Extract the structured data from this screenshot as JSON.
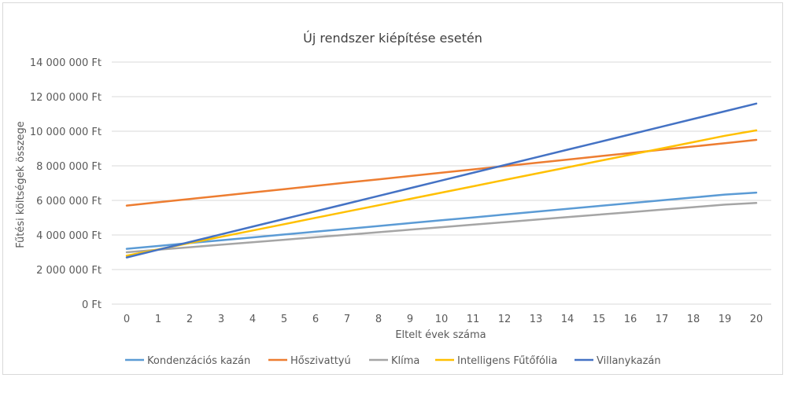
{
  "chart_data": {
    "type": "line",
    "title": "Új rendszer kiépítése esetén",
    "xlabel": "Eltelt évek száma",
    "ylabel": "Fűtési költségek összege",
    "x": [
      0,
      1,
      2,
      3,
      4,
      5,
      6,
      7,
      8,
      9,
      10,
      11,
      12,
      13,
      14,
      15,
      16,
      17,
      18,
      19,
      20
    ],
    "x_tick_labels": [
      "0",
      "1",
      "2",
      "3",
      "4",
      "5",
      "6",
      "7",
      "8",
      "9",
      "10",
      "11",
      "12",
      "13",
      "14",
      "15",
      "16",
      "17",
      "18",
      "19",
      "20"
    ],
    "ylim": [
      0,
      14000000
    ],
    "y_ticks": [
      0,
      2000000,
      4000000,
      6000000,
      8000000,
      10000000,
      12000000,
      14000000
    ],
    "y_tick_labels": [
      "0 Ft",
      "2 000 000 Ft",
      "4 000 000 Ft",
      "6 000 000 Ft",
      "8 000 000 Ft",
      "10 000 000 Ft",
      "12 000 000 Ft",
      "14 000 000 Ft"
    ],
    "grid": true,
    "legend_position": "bottom",
    "series": [
      {
        "name": "Kondenzációs kazán",
        "color": "#5b9bd5",
        "values": [
          3200000,
          3365000,
          3530000,
          3695000,
          3860000,
          4025000,
          4190000,
          4355000,
          4520000,
          4685000,
          4850000,
          5015000,
          5180000,
          5345000,
          5510000,
          5675000,
          5840000,
          6005000,
          6170000,
          6335000,
          6450000
        ]
      },
      {
        "name": "Hőszivattyú",
        "color": "#ed7d31",
        "values": [
          5700000,
          5890000,
          6080000,
          6270000,
          6460000,
          6650000,
          6840000,
          7030000,
          7220000,
          7410000,
          7600000,
          7790000,
          7980000,
          8170000,
          8360000,
          8550000,
          8740000,
          8930000,
          9120000,
          9310000,
          9500000
        ]
      },
      {
        "name": "Klíma",
        "color": "#a5a5a5",
        "values": [
          3000000,
          3145000,
          3290000,
          3435000,
          3580000,
          3725000,
          3870000,
          4015000,
          4160000,
          4305000,
          4450000,
          4595000,
          4740000,
          4885000,
          5030000,
          5175000,
          5320000,
          5465000,
          5610000,
          5755000,
          5850000
        ]
      },
      {
        "name": "Intelligens Fűtőfólia",
        "color": "#ffc000",
        "values": [
          2800000,
          3165000,
          3530000,
          3895000,
          4260000,
          4625000,
          4990000,
          5355000,
          5720000,
          6085000,
          6450000,
          6815000,
          7180000,
          7545000,
          7910000,
          8275000,
          8640000,
          9005000,
          9370000,
          9735000,
          10050000
        ]
      },
      {
        "name": "Villanykazán",
        "color": "#4472c4",
        "values": [
          2700000,
          3145000,
          3590000,
          4035000,
          4480000,
          4925000,
          5370000,
          5815000,
          6260000,
          6705000,
          7150000,
          7595000,
          8040000,
          8485000,
          8930000,
          9375000,
          9820000,
          10265000,
          10710000,
          11155000,
          11600000
        ]
      }
    ]
  }
}
